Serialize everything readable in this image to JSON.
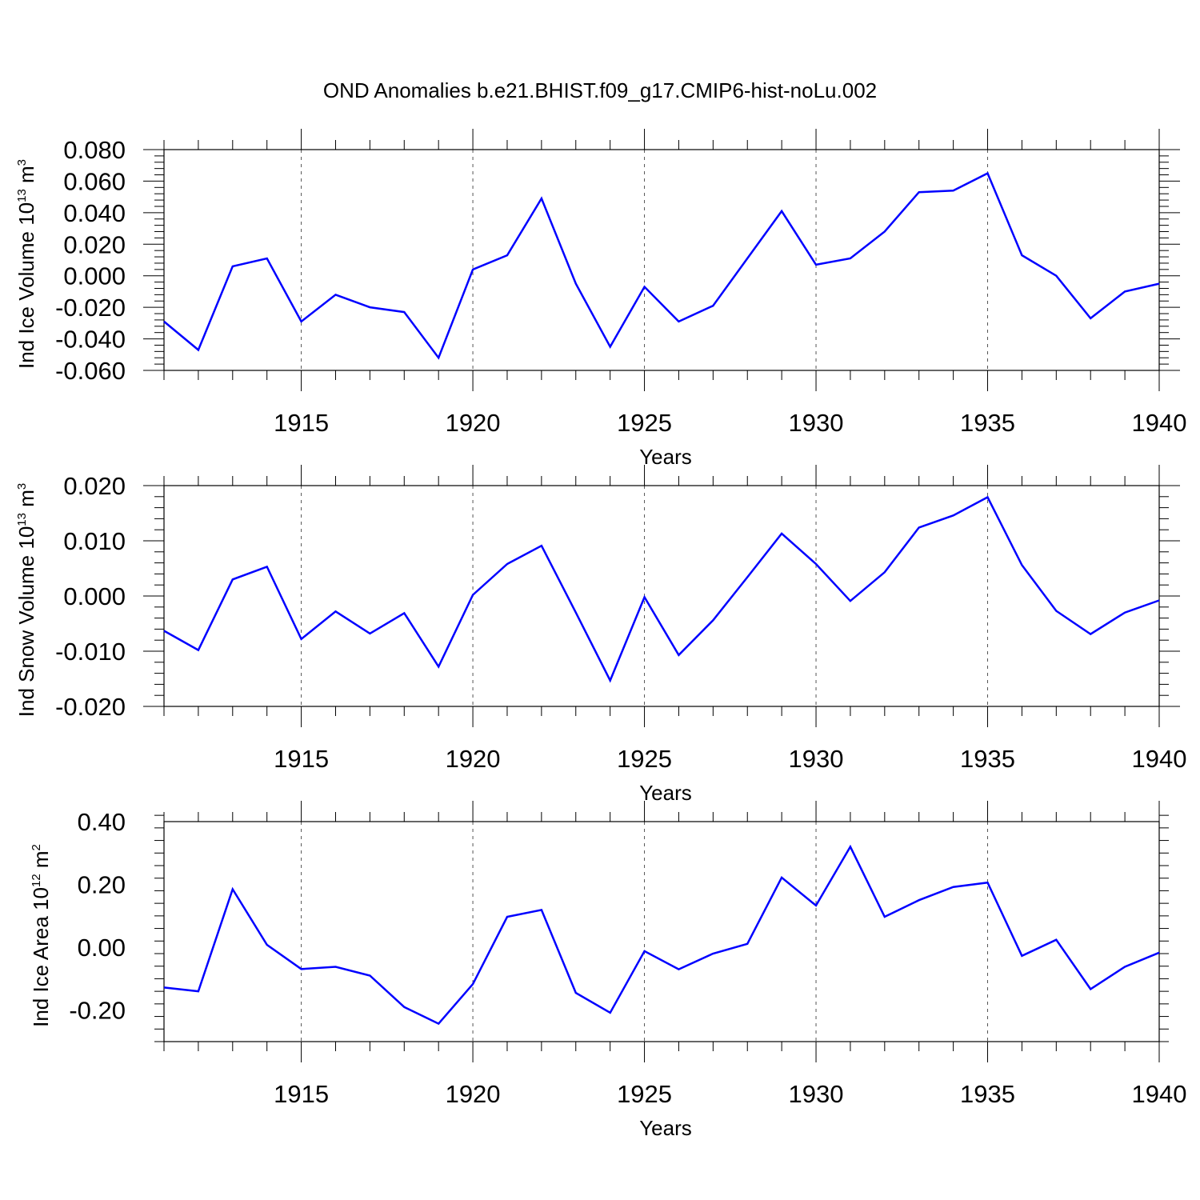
{
  "title": "OND Anomalies b.e21.BHIST.f09_g17.CMIP6-hist-noLu.002",
  "colors": {
    "line": "#0000ff",
    "axis": "#000000",
    "grid": "#555555"
  },
  "chart_data": [
    {
      "type": "line",
      "xlabel": "Years",
      "ylabel_main": "Ind Ice Volume 10",
      "ylabel_exp": "13",
      "ylabel_unit": " m",
      "ylabel_unit_exp": "3",
      "xlim": [
        1911,
        1940
      ],
      "ylim": [
        -0.06,
        0.08
      ],
      "yticks": [
        -0.06,
        -0.04,
        -0.02,
        0.0,
        0.02,
        0.04,
        0.06,
        0.08
      ],
      "yticklabels": [
        "-0.060",
        "-0.040",
        "-0.020",
        "0.000",
        "0.020",
        "0.040",
        "0.060",
        "0.080"
      ],
      "xticks": [
        1915,
        1920,
        1925,
        1930,
        1935,
        1940
      ],
      "xticklabels": [
        "1915",
        "1920",
        "1925",
        "1930",
        "1935",
        "1940"
      ],
      "grid": "dashed vertical at major x ticks",
      "x": [
        1911,
        1912,
        1913,
        1914,
        1915,
        1916,
        1917,
        1918,
        1919,
        1920,
        1921,
        1922,
        1923,
        1924,
        1925,
        1926,
        1927,
        1928,
        1929,
        1930,
        1931,
        1932,
        1933,
        1934,
        1935,
        1936,
        1937,
        1938,
        1939,
        1940
      ],
      "y": [
        -0.029,
        -0.047,
        0.006,
        0.011,
        -0.029,
        -0.012,
        -0.02,
        -0.023,
        -0.052,
        0.004,
        0.013,
        0.049,
        -0.005,
        -0.045,
        -0.007,
        -0.029,
        -0.019,
        0.011,
        0.041,
        0.007,
        0.011,
        0.028,
        0.053,
        0.054,
        0.065,
        0.013,
        0.0,
        -0.027,
        -0.01,
        -0.005
      ]
    },
    {
      "type": "line",
      "xlabel": "Years",
      "ylabel_main": "Ind Snow Volume 10",
      "ylabel_exp": "13",
      "ylabel_unit": " m",
      "ylabel_unit_exp": "3",
      "xlim": [
        1911,
        1940
      ],
      "ylim": [
        -0.02,
        0.02
      ],
      "yticks": [
        -0.02,
        -0.01,
        0.0,
        0.01,
        0.02
      ],
      "yticklabels": [
        "-0.020",
        "-0.010",
        "0.000",
        "0.010",
        "0.020"
      ],
      "xticks": [
        1915,
        1920,
        1925,
        1930,
        1935,
        1940
      ],
      "xticklabels": [
        "1915",
        "1920",
        "1925",
        "1930",
        "1935",
        "1940"
      ],
      "grid": "dashed vertical at major x ticks",
      "x": [
        1911,
        1912,
        1913,
        1914,
        1915,
        1916,
        1917,
        1918,
        1919,
        1920,
        1921,
        1922,
        1923,
        1924,
        1925,
        1926,
        1927,
        1928,
        1929,
        1930,
        1931,
        1932,
        1933,
        1934,
        1935,
        1936,
        1937,
        1938,
        1939,
        1940
      ],
      "y": [
        -0.0063,
        -0.0098,
        0.003,
        0.0053,
        -0.0078,
        -0.0028,
        -0.0068,
        -0.0031,
        -0.0128,
        0.0002,
        0.0058,
        0.0091,
        -0.003,
        -0.0153,
        -0.0002,
        -0.0107,
        -0.0044,
        0.0034,
        0.0113,
        0.0058,
        -0.0009,
        0.0043,
        0.0124,
        0.0146,
        0.0179,
        0.0056,
        -0.0027,
        -0.0069,
        -0.003,
        -0.0008
      ]
    },
    {
      "type": "line",
      "xlabel": "Years",
      "ylabel_main": "Ind Ice Area 10",
      "ylabel_exp": "12",
      "ylabel_unit": " m",
      "ylabel_unit_exp": "2",
      "xlim": [
        1911,
        1940
      ],
      "ylim": [
        -0.3,
        0.4
      ],
      "yticks": [
        -0.2,
        0.0,
        0.2,
        0.4
      ],
      "yticklabels": [
        "-0.20",
        "0.00",
        "0.20",
        "0.40"
      ],
      "xticks": [
        1915,
        1920,
        1925,
        1930,
        1935,
        1940
      ],
      "xticklabels": [
        "1915",
        "1920",
        "1925",
        "1930",
        "1935",
        "1940"
      ],
      "grid": "dashed vertical at major x ticks",
      "x": [
        1911,
        1912,
        1913,
        1914,
        1915,
        1916,
        1917,
        1918,
        1919,
        1920,
        1921,
        1922,
        1923,
        1924,
        1925,
        1926,
        1927,
        1928,
        1929,
        1930,
        1931,
        1932,
        1933,
        1934,
        1935,
        1936,
        1937,
        1938,
        1939,
        1940
      ],
      "y": [
        -0.128,
        -0.14,
        0.185,
        0.008,
        -0.069,
        -0.062,
        -0.09,
        -0.19,
        -0.243,
        -0.117,
        0.097,
        0.119,
        -0.145,
        -0.208,
        -0.012,
        -0.07,
        -0.02,
        0.011,
        0.222,
        0.133,
        0.32,
        0.097,
        0.15,
        0.192,
        0.206,
        -0.027,
        0.024,
        -0.133,
        -0.062,
        -0.017
      ]
    }
  ]
}
